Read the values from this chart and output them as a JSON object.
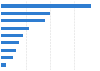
{
  "values": [
    0.92,
    0.5,
    0.45,
    0.28,
    0.22,
    0.18,
    0.15,
    0.12,
    0.05
  ],
  "bar_color": "#2e7dd1",
  "background_color": "#ffffff",
  "grid_color": "#d0d0d0",
  "bar_height": 0.45,
  "figsize": [
    1.0,
    0.71
  ],
  "dpi": 100
}
